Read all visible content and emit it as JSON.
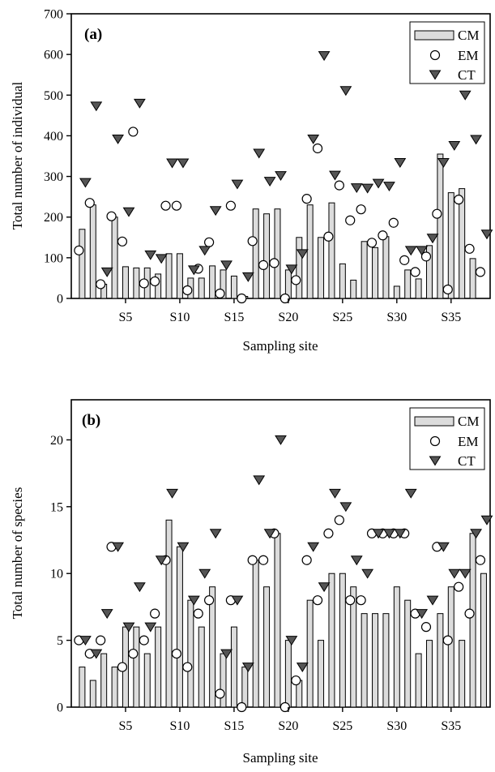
{
  "chart_data": [
    {
      "type": "bar",
      "panel_label": "(a)",
      "xlabel": "Sampling site",
      "ylabel": "Total number of individual",
      "ylim": [
        0,
        700
      ],
      "yticks": [
        0,
        100,
        200,
        300,
        400,
        500,
        600,
        700
      ],
      "xtick_sites": [
        5,
        10,
        15,
        20,
        25,
        30,
        35
      ],
      "xtick_labels": [
        "S5",
        "S10",
        "S15",
        "S20",
        "S25",
        "S30",
        "S35"
      ],
      "legend_position": "top-right",
      "categories": [
        "S1",
        "S2",
        "S3",
        "S4",
        "S5",
        "S6",
        "S7",
        "S8",
        "S9",
        "S10",
        "S11",
        "S12",
        "S13",
        "S14",
        "S15",
        "S16",
        "S17",
        "S18",
        "S19",
        "S20",
        "S21",
        "S22",
        "S23",
        "S24",
        "S25",
        "S26",
        "S27",
        "S28",
        "S29",
        "S30",
        "S31",
        "S32",
        "S33",
        "S34",
        "S35",
        "S36",
        "S37",
        "S38"
      ],
      "series": [
        {
          "name": "CM",
          "kind": "bar",
          "values": [
            170,
            230,
            35,
            200,
            78,
            75,
            75,
            60,
            110,
            110,
            50,
            50,
            80,
            70,
            55,
            5,
            220,
            208,
            220,
            70,
            150,
            230,
            150,
            235,
            85,
            45,
            140,
            125,
            152,
            30,
            70,
            48,
            130,
            355,
            260,
            270,
            98,
            0
          ]
        },
        {
          "name": "EM",
          "kind": "circle",
          "values": [
            118,
            235,
            35,
            202,
            140,
            410,
            37,
            42,
            228,
            228,
            20,
            73,
            138,
            12,
            228,
            0,
            141,
            82,
            87,
            0,
            45,
            245,
            369,
            152,
            278,
            192,
            219,
            137,
            155,
            186,
            94,
            65,
            103,
            208,
            22,
            243,
            122,
            65
          ]
        },
        {
          "name": "CT",
          "kind": "triangle",
          "values": [
            285,
            473,
            65,
            392,
            213,
            480,
            107,
            98,
            333,
            333,
            70,
            118,
            216,
            82,
            281,
            53,
            357,
            288,
            302,
            72,
            110,
            392,
            597,
            303,
            511,
            272,
            271,
            283,
            276,
            334,
            118,
            118,
            148,
            334,
            376,
            500,
            391,
            158
          ]
        }
      ],
      "colors": {
        "bar_fill": "#dcdcdc",
        "stroke": "#000000",
        "triangle_fill": "#555555",
        "circle_fill": "#ffffff"
      }
    },
    {
      "type": "bar",
      "panel_label": "(b)",
      "xlabel": "Sampling site",
      "ylabel": "Total number of species",
      "ylim": [
        0,
        23
      ],
      "yticks": [
        0,
        5,
        10,
        15,
        20
      ],
      "xtick_sites": [
        5,
        10,
        15,
        20,
        25,
        30,
        35
      ],
      "xtick_labels": [
        "S5",
        "S10",
        "S15",
        "S20",
        "S25",
        "S30",
        "S35"
      ],
      "legend_position": "top-right",
      "categories": [
        "S1",
        "S2",
        "S3",
        "S4",
        "S5",
        "S6",
        "S7",
        "S8",
        "S9",
        "S10",
        "S11",
        "S12",
        "S13",
        "S14",
        "S15",
        "S16",
        "S17",
        "S18",
        "S19",
        "S20",
        "S21",
        "S22",
        "S23",
        "S24",
        "S25",
        "S26",
        "S27",
        "S28",
        "S29",
        "S30",
        "S31",
        "S32",
        "S33",
        "S34",
        "S35",
        "S36",
        "S37",
        "S38"
      ],
      "series": [
        {
          "name": "CM",
          "kind": "bar",
          "values": [
            3,
            2,
            4,
            3,
            6,
            6,
            4,
            6,
            14,
            12,
            8,
            6,
            9,
            4,
            6,
            3,
            11,
            9,
            13,
            5,
            2,
            8,
            5,
            10,
            10,
            9,
            7,
            7,
            7,
            9,
            8,
            4,
            5,
            7,
            9,
            5,
            13,
            10
          ]
        },
        {
          "name": "EM",
          "kind": "circle",
          "values": [
            5,
            4,
            5,
            12,
            3,
            4,
            5,
            7,
            11,
            4,
            3,
            7,
            8,
            1,
            8,
            0,
            11,
            11,
            13,
            0,
            2,
            11,
            8,
            13,
            14,
            8,
            8,
            13,
            13,
            13,
            13,
            7,
            6,
            12,
            5,
            9,
            7,
            11
          ]
        },
        {
          "name": "CT",
          "kind": "triangle",
          "values": [
            5,
            4,
            7,
            12,
            6,
            9,
            6,
            11,
            16,
            12,
            8,
            10,
            13,
            4,
            8,
            3,
            17,
            13,
            20,
            5,
            3,
            12,
            9,
            16,
            15,
            11,
            10,
            13,
            13,
            13,
            16,
            7,
            8,
            12,
            10,
            10,
            13,
            14
          ]
        }
      ],
      "colors": {
        "bar_fill": "#dcdcdc",
        "stroke": "#000000",
        "triangle_fill": "#555555",
        "circle_fill": "#ffffff"
      }
    }
  ]
}
